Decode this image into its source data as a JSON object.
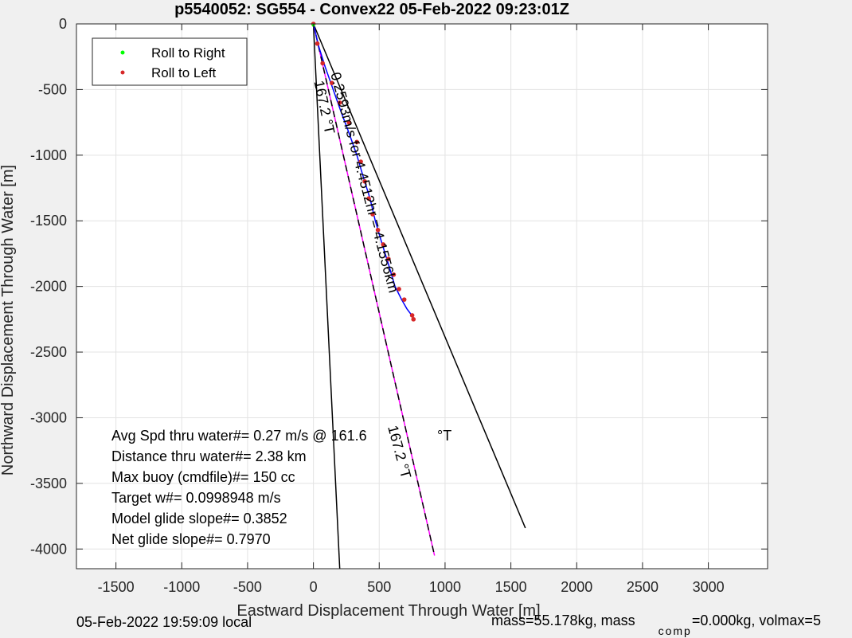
{
  "chart_data": {
    "type": "line",
    "title": "p5540052: SG554 - Convex22 05-Feb-2022 09:23:01Z",
    "xlabel": "Eastward Displacement Through Water [m]",
    "ylabel": "Northward Displacement Through Water [m]",
    "xlim": [
      -1800,
      3450
    ],
    "ylim": [
      -4150,
      0
    ],
    "xticks": [
      -1500,
      -1000,
      -500,
      0,
      500,
      1000,
      1500,
      2000,
      2500,
      3000
    ],
    "yticks": [
      0,
      -500,
      -1000,
      -1500,
      -2000,
      -2500,
      -3000,
      -3500,
      -4000
    ],
    "grid": true,
    "legend": {
      "placement": "top-left",
      "entries": [
        {
          "label": "Roll to Right",
          "color": "#00ff00"
        },
        {
          "label": "Roll to Left",
          "color": "#d62728"
        }
      ]
    },
    "track": {
      "color": "#0000ff",
      "x": [
        0,
        40,
        90,
        150,
        210,
        270,
        330,
        380,
        430,
        470,
        520,
        570,
        620,
        670,
        710,
        740,
        760
      ],
      "y": [
        0,
        -170,
        -330,
        -500,
        -670,
        -830,
        -1000,
        -1170,
        -1330,
        -1500,
        -1670,
        -1830,
        -2000,
        -2100,
        -2170,
        -2210,
        -2240
      ]
    },
    "roll_left_points": {
      "x": [
        0,
        30,
        70,
        140,
        200,
        270,
        330,
        360,
        390,
        420,
        450,
        490,
        530,
        570,
        610,
        650,
        690,
        750,
        760
      ],
      "y": [
        0,
        -150,
        -300,
        -450,
        -600,
        -750,
        -900,
        -1050,
        -1200,
        -1330,
        -1450,
        -1570,
        -1680,
        -1790,
        -1910,
        -2020,
        -2100,
        -2220,
        -2250
      ]
    },
    "roll_right_points": {
      "x": [
        0
      ],
      "y": [
        -10
      ]
    },
    "dashed_line": {
      "color": "#000000",
      "x": [
        0,
        920
      ],
      "y": [
        0,
        -4050
      ]
    },
    "magenta_line": {
      "color": "#ff00ff",
      "x": [
        0,
        920
      ],
      "y": [
        0,
        -4050
      ]
    },
    "cone_lines": [
      {
        "color": "#000000",
        "x": [
          0,
          200
        ],
        "y": [
          0,
          -4150
        ]
      },
      {
        "color": "#000000",
        "x": [
          0,
          1610
        ],
        "y": [
          0,
          -3840
        ]
      }
    ],
    "annotations": [
      {
        "text": "167.2 °T",
        "x": 5,
        "y": -440,
        "rotation": 78
      },
      {
        "text": "0.2593m/s for 4.4512hr = 4.1556km",
        "x": 130,
        "y": -380,
        "rotation": 75
      },
      {
        "text": "167.2 °T",
        "x": 565,
        "y": -3070,
        "rotation": 75
      }
    ],
    "stats": [
      {
        "label": "Avg Spd thru water#=  0.27 m/s @ 161.6",
        "suffix": "°T"
      },
      {
        "label": "Distance thru water#=  2.38 km"
      },
      {
        "label": "Max buoy (cmdfile)#= 150 cc"
      },
      {
        "label": "Target w#= 0.0998948 m/s"
      },
      {
        "label": "Model glide slope#= 0.3852"
      },
      {
        "label": "Net glide slope#= 0.7970"
      }
    ]
  },
  "footer": {
    "local_time": "05-Feb-2022 19:59:09 local",
    "mass_text": "mass=55.178kg, mass",
    "comp_subscript": "comp",
    "rest_text": "=0.000kg, volmax=5"
  }
}
